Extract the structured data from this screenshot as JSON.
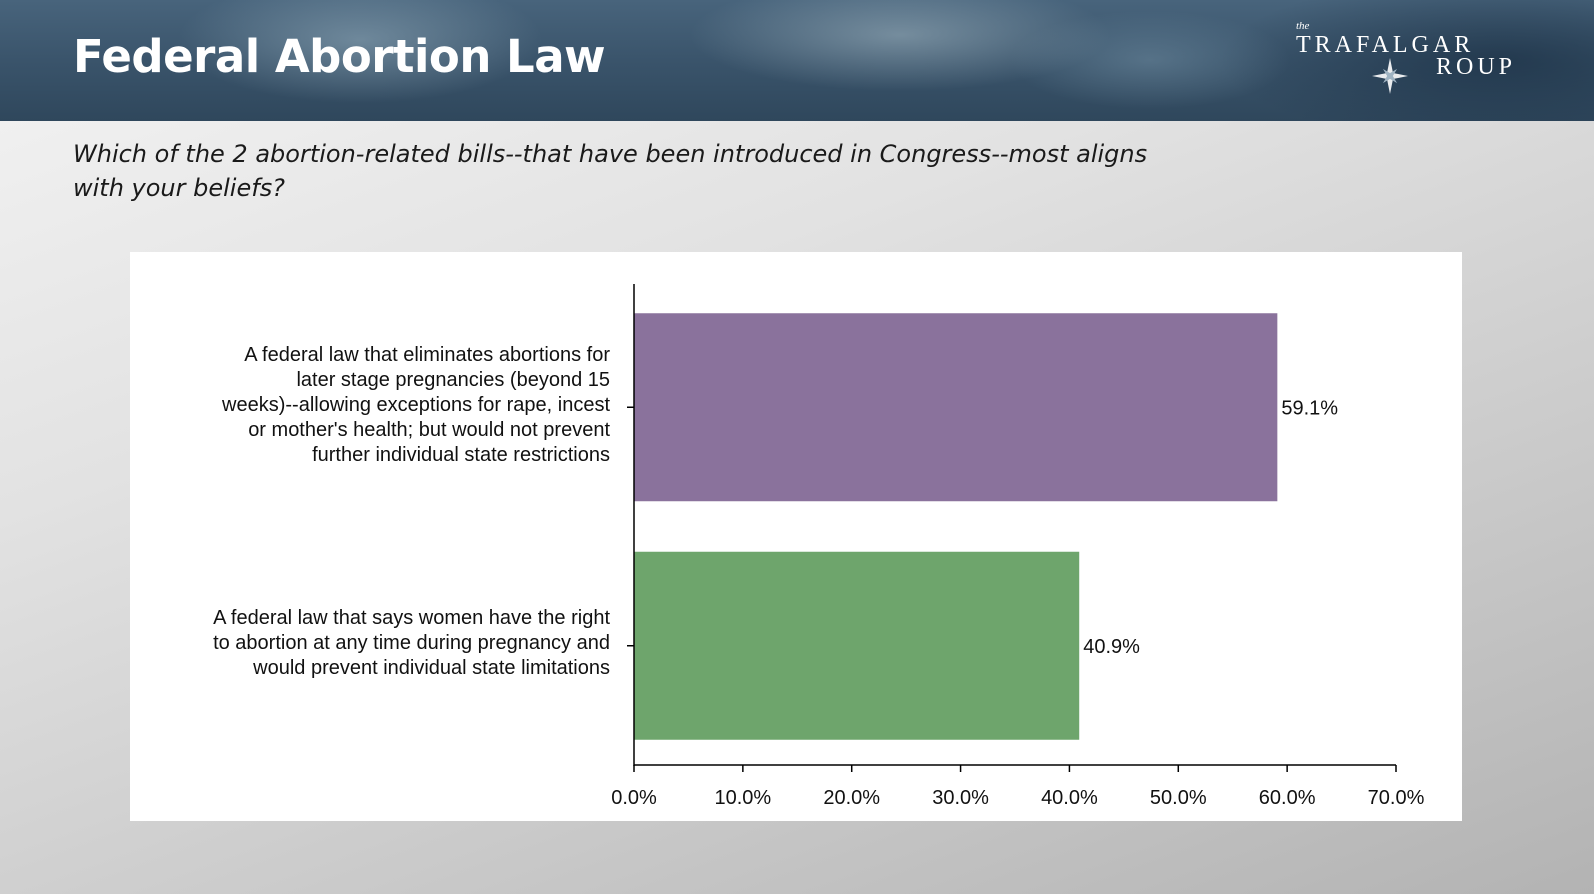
{
  "slide": {
    "title": "Federal Abortion Law",
    "question": "Which of the 2 abortion-related bills--that have been introduced in Congress--most aligns with your beliefs?"
  },
  "logo": {
    "the": "the",
    "line1": "TRAFALGAR",
    "line2": "ROUP"
  },
  "chart_data": {
    "type": "bar",
    "orientation": "horizontal",
    "categories": [
      "A federal law that eliminates abortions for later stage pregnancies (beyond 15 weeks)--allowing exceptions for rape, incest or mother's health; but would not prevent further individual state restrictions",
      "A federal law that says women have the right to abortion at any time during pregnancy and would prevent individual state limitations"
    ],
    "category_lines": [
      [
        "A federal law that eliminates abortions for",
        "later stage pregnancies (beyond 15",
        "weeks)--allowing exceptions for rape, incest",
        "or mother's health; but would not prevent",
        "further individual state restrictions"
      ],
      [
        "A federal law that says women have the right",
        "to abortion at any time during pregnancy and",
        "would prevent individual state limitations"
      ]
    ],
    "values": [
      59.1,
      40.9
    ],
    "data_labels": [
      "59.1%",
      "40.9%"
    ],
    "colors": [
      "#8a729c",
      "#6ea56c"
    ],
    "xlim": [
      0,
      70
    ],
    "xticks": [
      "0.0%",
      "10.0%",
      "20.0%",
      "30.0%",
      "40.0%",
      "50.0%",
      "60.0%",
      "70.0%"
    ],
    "grid": false,
    "legend": "none"
  }
}
